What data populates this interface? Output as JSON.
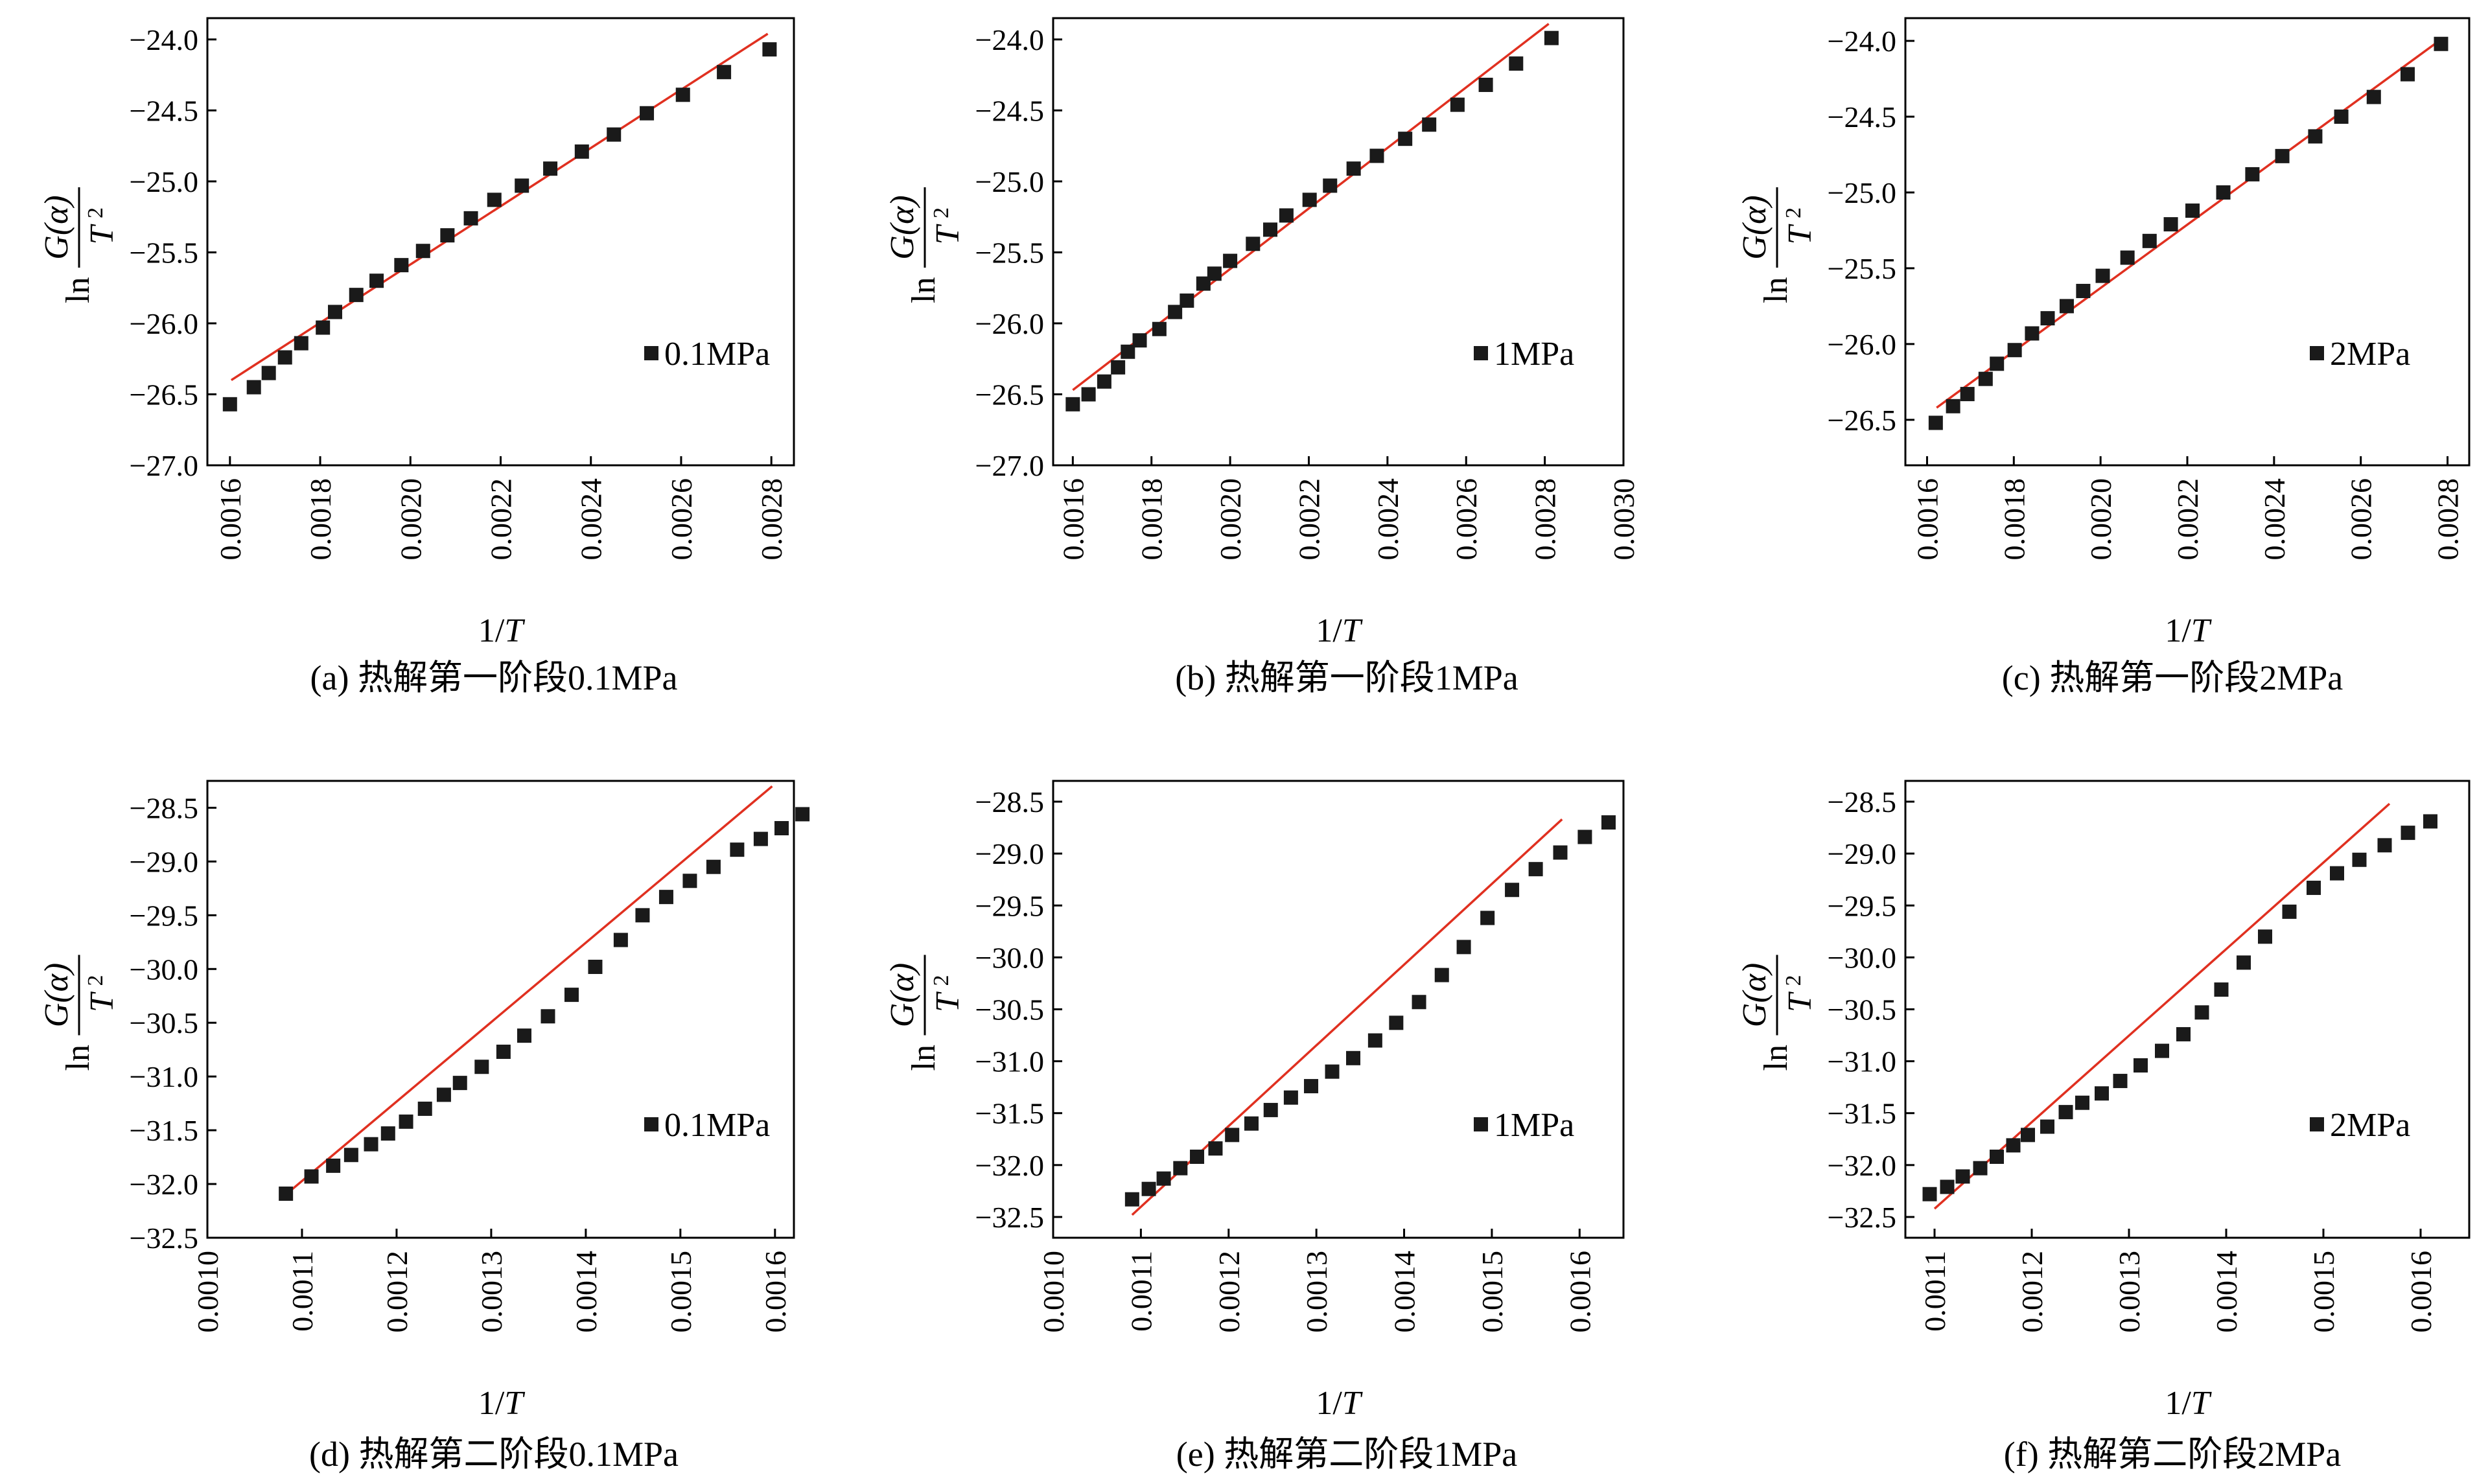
{
  "colors": {
    "fit_line": "#e03020",
    "marker": "#1a1a1a",
    "axis": "#000000",
    "background": "#ffffff"
  },
  "y_label": {
    "prefix": "ln",
    "numerator": "G(α)",
    "denominator": "T",
    "exponent": "2"
  },
  "chart_data": [
    {
      "id": "a",
      "type": "scatter",
      "caption": "(a) 热解第一阶段0.1MPa",
      "xlabel": "1/T",
      "legend": "0.1MPa",
      "legend_position": "right",
      "grid": false,
      "xlim": [
        0.00155,
        0.00285
      ],
      "ylim": [
        -27.0,
        -23.85
      ],
      "xticks": [
        0.0016,
        0.0018,
        0.002,
        0.0022,
        0.0024,
        0.0026,
        0.0028
      ],
      "xtick_labels": [
        "0.0016",
        "0.0018",
        "0.0020",
        "0.0022",
        "0.0024",
        "0.0026",
        "0.0028"
      ],
      "yticks": [
        -27.0,
        -26.5,
        -26.0,
        -25.5,
        -25.0,
        -24.5,
        -24.0
      ],
      "ytick_labels": [
        "−27.0",
        "−26.5",
        "−26.0",
        "−25.5",
        "−25.0",
        "−24.5",
        "−24.0"
      ],
      "fit": [
        [
          0.001603,
          -26.4
        ],
        [
          0.002792,
          -23.96
        ]
      ],
      "points": [
        [
          0.0016,
          -26.57
        ],
        [
          0.001653,
          -26.45
        ],
        [
          0.001686,
          -26.35
        ],
        [
          0.001722,
          -26.24
        ],
        [
          0.001758,
          -26.14
        ],
        [
          0.001806,
          -26.03
        ],
        [
          0.001833,
          -25.92
        ],
        [
          0.00188,
          -25.8
        ],
        [
          0.001925,
          -25.7
        ],
        [
          0.00198,
          -25.59
        ],
        [
          0.002028,
          -25.49
        ],
        [
          0.002082,
          -25.38
        ],
        [
          0.002134,
          -25.26
        ],
        [
          0.002186,
          -25.13
        ],
        [
          0.002247,
          -25.03
        ],
        [
          0.00231,
          -24.91
        ],
        [
          0.00238,
          -24.79
        ],
        [
          0.002451,
          -24.67
        ],
        [
          0.002524,
          -24.52
        ],
        [
          0.002604,
          -24.39
        ],
        [
          0.002695,
          -24.23
        ],
        [
          0.002796,
          -24.07
        ]
      ]
    },
    {
      "id": "b",
      "type": "scatter",
      "caption": "(b) 热解第一阶段1MPa",
      "xlabel": "1/T",
      "legend": "1MPa",
      "legend_position": "right",
      "grid": false,
      "xlim": [
        0.00155,
        0.003
      ],
      "ylim": [
        -27.0,
        -23.85
      ],
      "xticks": [
        0.0016,
        0.0018,
        0.002,
        0.0022,
        0.0024,
        0.0026,
        0.0028,
        0.003
      ],
      "xtick_labels": [
        "0.0016",
        "0.0018",
        "0.0020",
        "0.0022",
        "0.0024",
        "0.0026",
        "0.0028",
        "0.0030"
      ],
      "yticks": [
        -27.0,
        -26.5,
        -26.0,
        -25.5,
        -25.0,
        -24.5,
        -24.0
      ],
      "ytick_labels": [
        "−27.0",
        "−26.5",
        "−26.0",
        "−25.5",
        "−25.0",
        "−24.5",
        "−24.0"
      ],
      "fit": [
        [
          0.0016,
          -26.47
        ],
        [
          0.00281,
          -23.89
        ]
      ],
      "points": [
        [
          0.0016,
          -26.57
        ],
        [
          0.00164,
          -26.5
        ],
        [
          0.00168,
          -26.41
        ],
        [
          0.001715,
          -26.31
        ],
        [
          0.00174,
          -26.2
        ],
        [
          0.00177,
          -26.12
        ],
        [
          0.00182,
          -26.04
        ],
        [
          0.00186,
          -25.92
        ],
        [
          0.00189,
          -25.84
        ],
        [
          0.001932,
          -25.72
        ],
        [
          0.00196,
          -25.65
        ],
        [
          0.002,
          -25.56
        ],
        [
          0.002058,
          -25.44
        ],
        [
          0.002102,
          -25.34
        ],
        [
          0.002143,
          -25.24
        ],
        [
          0.002202,
          -25.13
        ],
        [
          0.002254,
          -25.03
        ],
        [
          0.002314,
          -24.91
        ],
        [
          0.002373,
          -24.82
        ],
        [
          0.002445,
          -24.7
        ],
        [
          0.002506,
          -24.6
        ],
        [
          0.002578,
          -24.46
        ],
        [
          0.00265,
          -24.32
        ],
        [
          0.002727,
          -24.17
        ],
        [
          0.002817,
          -23.99
        ]
      ]
    },
    {
      "id": "c",
      "type": "scatter",
      "caption": "(c) 热解第一阶段2MPa",
      "xlabel": "1/T",
      "legend": "2MPa",
      "legend_position": "right",
      "grid": false,
      "xlim": [
        0.00155,
        0.00285
      ],
      "ylim": [
        -26.8,
        -23.85
      ],
      "xticks": [
        0.0016,
        0.0018,
        0.002,
        0.0022,
        0.0024,
        0.0026,
        0.0028
      ],
      "xtick_labels": [
        "0.0016",
        "0.0018",
        "0.0020",
        "0.0022",
        "0.0024",
        "0.0026",
        "0.0028"
      ],
      "yticks": [
        -26.5,
        -26.0,
        -25.5,
        -25.0,
        -24.5,
        -24.0
      ],
      "ytick_labels": [
        "−26.5",
        "−26.0",
        "−25.5",
        "−25.0",
        "−24.5",
        "−24.0"
      ],
      "fit": [
        [
          0.001622,
          -26.42
        ],
        [
          0.00279,
          -23.98
        ]
      ],
      "points": [
        [
          0.00162,
          -26.52
        ],
        [
          0.00166,
          -26.41
        ],
        [
          0.001693,
          -26.33
        ],
        [
          0.001735,
          -26.23
        ],
        [
          0.001761,
          -26.13
        ],
        [
          0.001802,
          -26.04
        ],
        [
          0.001842,
          -25.93
        ],
        [
          0.001878,
          -25.83
        ],
        [
          0.001922,
          -25.75
        ],
        [
          0.00196,
          -25.65
        ],
        [
          0.002005,
          -25.55
        ],
        [
          0.002062,
          -25.43
        ],
        [
          0.002113,
          -25.32
        ],
        [
          0.002162,
          -25.21
        ],
        [
          0.002212,
          -25.12
        ],
        [
          0.002283,
          -25.0
        ],
        [
          0.00235,
          -24.88
        ],
        [
          0.002419,
          -24.76
        ],
        [
          0.002495,
          -24.63
        ],
        [
          0.002555,
          -24.5
        ],
        [
          0.00263,
          -24.37
        ],
        [
          0.002708,
          -24.22
        ],
        [
          0.002785,
          -24.02
        ]
      ]
    },
    {
      "id": "d",
      "type": "scatter",
      "caption": "(d) 热解第二阶段0.1MPa",
      "xlabel": "1/T",
      "legend": "0.1MPa",
      "legend_position": "right",
      "grid": false,
      "xlim": [
        0.001,
        0.00162
      ],
      "ylim": [
        -32.5,
        -28.25
      ],
      "xticks": [
        0.001,
        0.0011,
        0.0012,
        0.0013,
        0.0014,
        0.0015,
        0.0016
      ],
      "xtick_labels": [
        "0.0010",
        "0.0011",
        "0.0012",
        "0.0013",
        "0.0014",
        "0.0015",
        "0.0016"
      ],
      "yticks": [
        -32.5,
        -32.0,
        -31.5,
        -31.0,
        -30.5,
        -30.0,
        -29.5,
        -29.0,
        -28.5
      ],
      "ytick_labels": [
        "−32.5",
        "−32.0",
        "−31.5",
        "−31.0",
        "−30.5",
        "−30.0",
        "−29.5",
        "−29.0",
        "−28.5"
      ],
      "fit": [
        [
          0.00108,
          -32.12
        ],
        [
          0.001597,
          -28.3
        ]
      ],
      "points": [
        [
          0.001083,
          -32.09
        ],
        [
          0.00111,
          -31.93
        ],
        [
          0.001133,
          -31.83
        ],
        [
          0.001152,
          -31.73
        ],
        [
          0.001173,
          -31.63
        ],
        [
          0.001191,
          -31.53
        ],
        [
          0.00121,
          -31.42
        ],
        [
          0.00123,
          -31.3
        ],
        [
          0.00125,
          -31.17
        ],
        [
          0.001267,
          -31.06
        ],
        [
          0.00129,
          -30.91
        ],
        [
          0.001313,
          -30.77
        ],
        [
          0.001335,
          -30.62
        ],
        [
          0.00136,
          -30.44
        ],
        [
          0.001385,
          -30.24
        ],
        [
          0.00141,
          -29.98
        ],
        [
          0.001437,
          -29.73
        ],
        [
          0.00146,
          -29.5
        ],
        [
          0.001485,
          -29.33
        ],
        [
          0.00151,
          -29.18
        ],
        [
          0.001535,
          -29.05
        ],
        [
          0.00156,
          -28.89
        ],
        [
          0.001585,
          -28.79
        ],
        [
          0.001607,
          -28.69
        ],
        [
          0.001629,
          -28.56
        ]
      ]
    },
    {
      "id": "e",
      "type": "scatter",
      "caption": "(e) 热解第二阶段1MPa",
      "xlabel": "1/T",
      "legend": "1MPa",
      "legend_position": "right",
      "grid": false,
      "xlim": [
        0.001,
        0.00165
      ],
      "ylim": [
        -32.7,
        -28.3
      ],
      "xticks": [
        0.001,
        0.0011,
        0.0012,
        0.0013,
        0.0014,
        0.0015,
        0.0016
      ],
      "xtick_labels": [
        "0.0010",
        "0.0011",
        "0.0012",
        "0.0013",
        "0.0014",
        "0.0015",
        "0.0016"
      ],
      "yticks": [
        -32.5,
        -32.0,
        -31.5,
        -31.0,
        -30.5,
        -30.0,
        -29.5,
        -29.0,
        -28.5
      ],
      "ytick_labels": [
        "−32.5",
        "−32.0",
        "−31.5",
        "−31.0",
        "−30.5",
        "−30.0",
        "−29.5",
        "−29.0",
        "−28.5"
      ],
      "fit": [
        [
          0.00109,
          -32.48
        ],
        [
          0.00158,
          -28.67
        ]
      ],
      "points": [
        [
          0.00109,
          -32.33
        ],
        [
          0.001109,
          -32.23
        ],
        [
          0.001126,
          -32.13
        ],
        [
          0.001145,
          -32.03
        ],
        [
          0.001164,
          -31.92
        ],
        [
          0.001185,
          -31.84
        ],
        [
          0.001204,
          -31.71
        ],
        [
          0.001226,
          -31.6
        ],
        [
          0.001248,
          -31.47
        ],
        [
          0.001271,
          -31.35
        ],
        [
          0.001294,
          -31.24
        ],
        [
          0.001318,
          -31.1
        ],
        [
          0.001342,
          -30.97
        ],
        [
          0.001367,
          -30.8
        ],
        [
          0.001391,
          -30.63
        ],
        [
          0.001417,
          -30.43
        ],
        [
          0.001443,
          -30.17
        ],
        [
          0.001468,
          -29.9
        ],
        [
          0.001495,
          -29.62
        ],
        [
          0.001523,
          -29.35
        ],
        [
          0.00155,
          -29.15
        ],
        [
          0.001578,
          -28.99
        ],
        [
          0.001606,
          -28.84
        ],
        [
          0.001633,
          -28.7
        ]
      ]
    },
    {
      "id": "f",
      "type": "scatter",
      "caption": "(f) 热解第二阶段2MPa",
      "xlabel": "1/T",
      "legend": "2MPa",
      "legend_position": "right",
      "grid": false,
      "xlim": [
        0.00107,
        0.00165
      ],
      "ylim": [
        -32.7,
        -28.3
      ],
      "xticks": [
        0.0011,
        0.0012,
        0.0013,
        0.0014,
        0.0015,
        0.0016
      ],
      "xtick_labels": [
        "0.0011",
        "0.0012",
        "0.0013",
        "0.0014",
        "0.0015",
        "0.0016"
      ],
      "yticks": [
        -32.5,
        -32.0,
        -31.5,
        -31.0,
        -30.5,
        -30.0,
        -29.5,
        -29.0,
        -28.5
      ],
      "ytick_labels": [
        "−32.5",
        "−32.0",
        "−31.5",
        "−31.0",
        "−30.5",
        "−30.0",
        "−29.5",
        "−29.0",
        "−28.5"
      ],
      "fit": [
        [
          0.0011,
          -32.42
        ],
        [
          0.001568,
          -28.52
        ]
      ],
      "points": [
        [
          0.001095,
          -32.28
        ],
        [
          0.001113,
          -32.21
        ],
        [
          0.001129,
          -32.11
        ],
        [
          0.001147,
          -32.03
        ],
        [
          0.001164,
          -31.92
        ],
        [
          0.001181,
          -31.81
        ],
        [
          0.001196,
          -31.71
        ],
        [
          0.001216,
          -31.63
        ],
        [
          0.001235,
          -31.49
        ],
        [
          0.001252,
          -31.4
        ],
        [
          0.001272,
          -31.31
        ],
        [
          0.001291,
          -31.19
        ],
        [
          0.001312,
          -31.04
        ],
        [
          0.001334,
          -30.9
        ],
        [
          0.001356,
          -30.74
        ],
        [
          0.001375,
          -30.53
        ],
        [
          0.001395,
          -30.31
        ],
        [
          0.001418,
          -30.05
        ],
        [
          0.00144,
          -29.8
        ],
        [
          0.001465,
          -29.56
        ],
        [
          0.00149,
          -29.33
        ],
        [
          0.001514,
          -29.19
        ],
        [
          0.001537,
          -29.06
        ],
        [
          0.001563,
          -28.92
        ],
        [
          0.001587,
          -28.8
        ],
        [
          0.00161,
          -28.69
        ]
      ]
    }
  ]
}
